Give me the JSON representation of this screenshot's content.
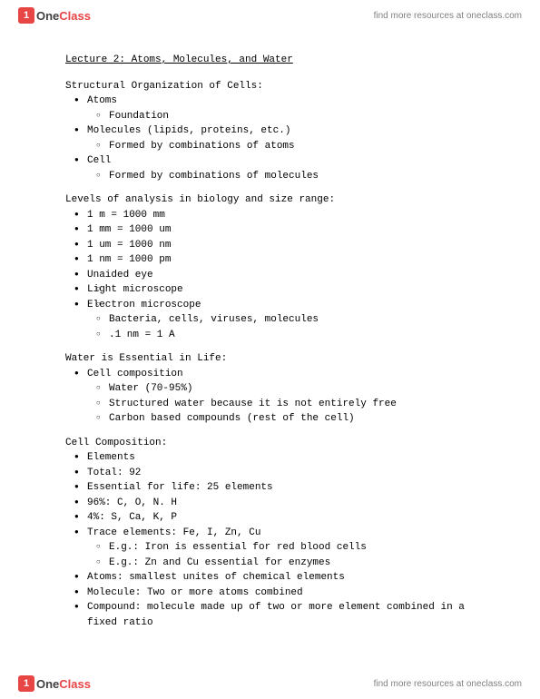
{
  "brand": {
    "logo_letter": "1",
    "name_one": "One",
    "name_class": "Class"
  },
  "header_link": "find more resources at oneclass.com",
  "footer_link": "find more resources at oneclass.com",
  "title": "Lecture 2: Atoms, Molecules, and Water",
  "s1": {
    "heading": "Structural Organization of Cells:",
    "i1": "Atoms",
    "i1a": "Foundation",
    "i2": "Molecules (lipids, proteins, etc.)",
    "i2a": "Formed by combinations of atoms",
    "i3": "Cell",
    "i3a": "Formed by combinations of molecules"
  },
  "s2": {
    "heading": "Levels of analysis in biology and size range:",
    "i1": "1 m = 1000 mm",
    "i2": "1 mm = 1000 um",
    "i3": "1 um = 1000 nm",
    "i4": "1 nm = 1000 pm",
    "i5": "Unaided eye",
    "i5a": "",
    "i6": "Light microscope",
    "i6a": "",
    "i7": "Electron microscope",
    "i7a": "Bacteria, cells, viruses, molecules",
    "i7b": ".1 nm = 1 A"
  },
  "s3": {
    "heading": "Water is Essential in Life:",
    "i1": "Cell composition",
    "i1a": "Water (70-95%)",
    "i1b": "Structured water because it is not entirely free",
    "i1c": "Carbon based compounds (rest of the cell)"
  },
  "s4": {
    "heading": "Cell Composition:",
    "i1": "Elements",
    "i2": "Total: 92",
    "i3": "Essential for life: 25 elements",
    "i4": "96%: C, O, N. H",
    "i5": "4%: S, Ca, K, P",
    "i6": "Trace elements: Fe, I, Zn, Cu",
    "i6a": "E.g.: Iron is essential for red blood cells",
    "i6b": "E.g.: Zn and Cu essential for enzymes",
    "i7": "Atoms: smallest unites of chemical elements",
    "i8": "Molecule: Two or more atoms combined",
    "i9": "Compound: molecule made up of two or more element combined in a fixed ratio"
  }
}
